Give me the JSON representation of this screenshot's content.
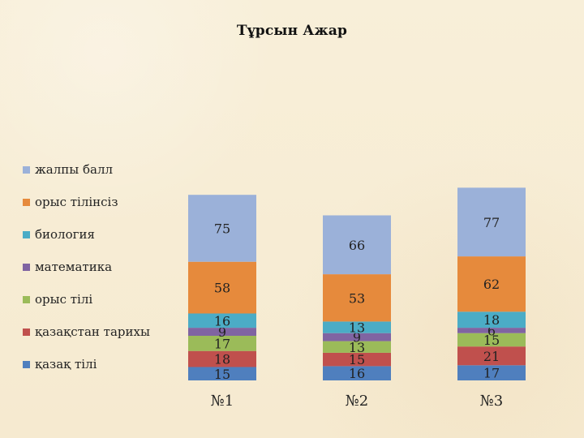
{
  "title": "Тұрсын Ажар",
  "chart_data": {
    "type": "bar",
    "stacked": true,
    "title": "Тұрсын Ажар",
    "xlabel": "",
    "ylabel": "",
    "categories": [
      "№1",
      "№2",
      "№3"
    ],
    "series": [
      {
        "name": "қазақ тілі",
        "values": [
          15,
          16,
          17
        ],
        "color": "#4f7fbe"
      },
      {
        "name": "қазақстан тарихы",
        "values": [
          18,
          15,
          21
        ],
        "color": "#c0504d"
      },
      {
        "name": "орыс тілі",
        "values": [
          17,
          13,
          15
        ],
        "color": "#9bbb59"
      },
      {
        "name": "математика",
        "values": [
          9,
          9,
          6
        ],
        "color": "#8064a2"
      },
      {
        "name": "биология",
        "values": [
          16,
          13,
          18
        ],
        "color": "#4bacc6"
      },
      {
        "name": "орыс тілінсіз",
        "values": [
          58,
          53,
          62
        ],
        "color": "#e68a3c"
      },
      {
        "name": "жалпы балл",
        "values": [
          75,
          66,
          77
        ],
        "color": "#9bb1d9"
      }
    ],
    "legend_position": "left",
    "grid": false
  }
}
